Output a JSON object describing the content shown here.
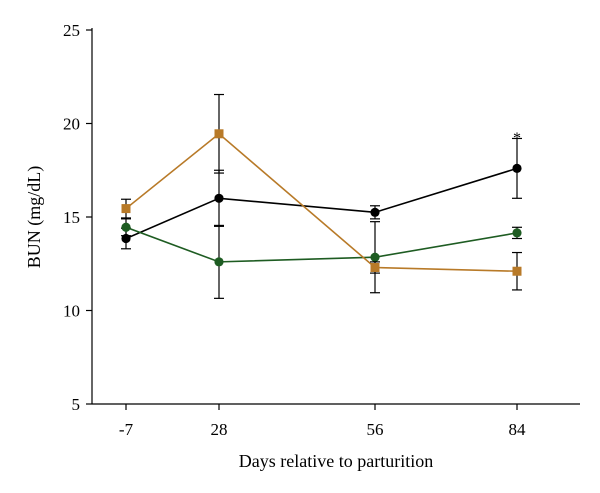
{
  "chart_data": {
    "type": "line",
    "title": "",
    "xlabel": "Days relative to parturition",
    "ylabel": "BUN (mg/dL)",
    "categories": [
      "-7",
      "28",
      "56",
      "84"
    ],
    "ylim": [
      5,
      25
    ],
    "yticks": [
      "5",
      "10",
      "15",
      "20",
      "25"
    ],
    "grid": false,
    "series": [
      {
        "color": "#000000",
        "marker": "circle",
        "values": [
          13.85,
          16.0,
          15.25,
          17.6
        ],
        "error": [
          0.55,
          1.5,
          0.35,
          1.6
        ]
      },
      {
        "color": "#1e5c22",
        "marker": "circle",
        "values": [
          14.45,
          12.6,
          12.85,
          14.15
        ],
        "error": [
          0.45,
          1.95,
          1.9,
          0.3
        ]
      },
      {
        "color": "#b87a28",
        "marker": "square",
        "values": [
          15.45,
          19.45,
          12.3,
          12.1
        ],
        "error": [
          0.5,
          2.1,
          0.3,
          1.0
        ]
      }
    ],
    "annotations": [
      {
        "text": "*",
        "category": "84",
        "y": 19.5
      }
    ]
  }
}
